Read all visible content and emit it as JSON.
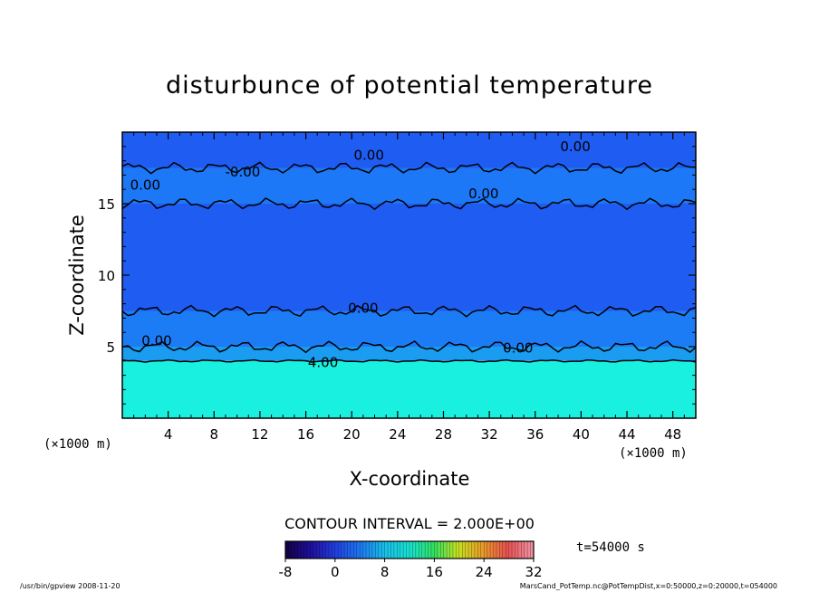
{
  "chart_data": {
    "type": "heatmap",
    "title": "disturbunce of potential temperature",
    "xlabel": "X-coordinate",
    "ylabel": "Z-coordinate",
    "x_unit_left": "(×1000 m)",
    "x_unit_right": "(×1000 m)",
    "xlim": [
      0,
      50
    ],
    "ylim": [
      0,
      20
    ],
    "xticks": [
      4,
      8,
      12,
      16,
      20,
      24,
      28,
      32,
      36,
      40,
      44,
      48
    ],
    "yticks": [
      5,
      10,
      15
    ],
    "contour_interval_text": "CONTOUR INTERVAL = 2.000E+00",
    "time_label": "t=54000 s",
    "colorbar": {
      "ticks": [
        -8,
        0,
        8,
        16,
        24,
        32
      ],
      "range": [
        -8,
        32
      ],
      "colors": [
        "#14004a",
        "#1f0fa0",
        "#2040e0",
        "#1e78f0",
        "#19bfe8",
        "#18e0d0",
        "#30e060",
        "#c8e020",
        "#e89a28",
        "#e85050",
        "#f090a0"
      ]
    },
    "layers": [
      {
        "z_range": [
          0,
          4
        ],
        "value": 4,
        "color": "#19f0e0"
      },
      {
        "z_range": [
          4,
          5
        ],
        "value": 2,
        "color": "#1a9cf0"
      },
      {
        "z_range": [
          5,
          7.5
        ],
        "value": 0,
        "color": "#1c7cf6"
      },
      {
        "z_range": [
          7.5,
          15
        ],
        "value": -2,
        "color": "#1f5cf2"
      },
      {
        "z_range": [
          15,
          17.5
        ],
        "value": 0,
        "color": "#1c78f6"
      },
      {
        "z_range": [
          17.5,
          20
        ],
        "value": -2,
        "color": "#1f5cf2"
      }
    ],
    "contour_labels": [
      {
        "x": 10.5,
        "z": 17.2,
        "text": "-0.00"
      },
      {
        "x": 21.5,
        "z": 18.4,
        "text": "0.00"
      },
      {
        "x": 39.5,
        "z": 19.0,
        "text": "0.00"
      },
      {
        "x": 2.0,
        "z": 16.3,
        "text": "0.00"
      },
      {
        "x": 31.5,
        "z": 15.7,
        "text": "0.00"
      },
      {
        "x": 21.0,
        "z": 7.7,
        "text": "0.00"
      },
      {
        "x": 3.0,
        "z": 5.4,
        "text": "0.00"
      },
      {
        "x": 34.5,
        "z": 4.9,
        "text": "0.00"
      },
      {
        "x": 17.5,
        "z": 3.9,
        "text": "4.00"
      }
    ],
    "footer_left": "/usr/bin/gpview   2008-11-20",
    "footer_right": "MarsCand_PotTemp.nc@PotTempDist,x=0:50000,z=0:20000,t=054000"
  }
}
